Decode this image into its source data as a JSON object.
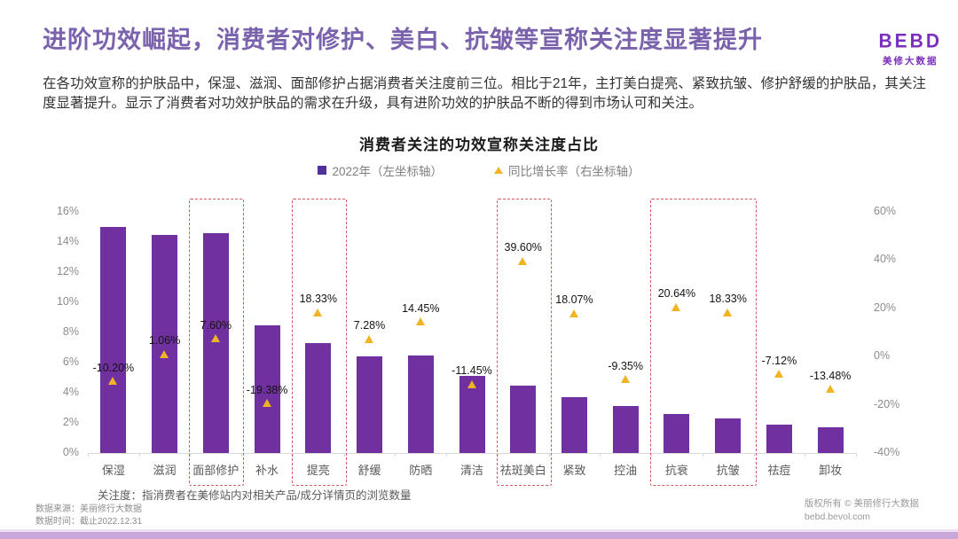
{
  "header": {
    "title": "进阶功效崛起，消费者对修护、美白、抗皱等宣称关注度显著提升",
    "paragraph": "在各功效宣称的护肤品中，保湿、滋润、面部修护占据消费者关注度前三位。相比于21年，主打美白提亮、紧致抗皱、修护舒缓的护肤品，其关注度显著提升。显示了消费者对功效护肤品的需求在升级，具有进阶功效的护肤品不断的得到市场认可和关注。",
    "logo": {
      "brand": "BEBD",
      "sub": "美修大数据"
    }
  },
  "chart_data": {
    "type": "bar",
    "title": "消费者关注的功效宣称关注度占比",
    "categories": [
      "保湿",
      "滋润",
      "面部修护",
      "补水",
      "提亮",
      "舒缓",
      "防晒",
      "清洁",
      "祛斑美白",
      "紧致",
      "控油",
      "抗衰",
      "抗皱",
      "祛痘",
      "卸妆"
    ],
    "series": [
      {
        "name": "2022年（左坐标轴）",
        "type": "bar",
        "axis": "left",
        "unit": "%",
        "values": [
          15.0,
          14.5,
          14.6,
          8.5,
          7.3,
          6.4,
          6.5,
          5.1,
          4.5,
          3.7,
          3.1,
          2.6,
          2.3,
          1.9,
          1.7
        ]
      },
      {
        "name": "同比增长率（右坐标轴）",
        "type": "scatter-triangle",
        "axis": "right",
        "unit": "%",
        "values": [
          -10.2,
          1.06,
          7.6,
          -19.38,
          18.33,
          7.28,
          14.45,
          -11.45,
          39.6,
          18.07,
          -9.35,
          20.64,
          18.33,
          -7.12,
          -13.48
        ],
        "labels": [
          "-10.20%",
          "1.06%",
          "7.60%",
          "-19.38%",
          "18.33%",
          "7.28%",
          "14.45%",
          "-11.45%",
          "39.60%",
          "18.07%",
          "-9.35%",
          "20.64%",
          "18.33%",
          "-7.12%",
          "-13.48%"
        ]
      }
    ],
    "left_axis": {
      "min": 0,
      "max": 16,
      "step": 2,
      "suffix": "%"
    },
    "right_axis": {
      "min": -40,
      "max": 60,
      "step": 20,
      "suffix": "%"
    },
    "grid": false,
    "legend_position": "top-center",
    "highlight_ranges": [
      {
        "start": 2,
        "end": 2
      },
      {
        "start": 4,
        "end": 4
      },
      {
        "start": 8,
        "end": 8
      },
      {
        "start": 11,
        "end": 12
      }
    ],
    "colors": {
      "bar": "#7030a0",
      "marker": "#f0b323",
      "marker_label": "#141414",
      "highlight_box": "#d15a5a",
      "legend_square": "#52309b",
      "title_accent": "#7b62ad",
      "logo": "#7b2fbe",
      "bottom_strip": "#c9a7db"
    }
  },
  "footnote": "关注度：指消费者在美修站内对相关产品/成分详情页的浏览数量",
  "footer": {
    "source": "数据来源：美丽修行大数据",
    "time": "数据时间：截止2022.12.31",
    "copyright": "版权所有 © 美丽修行大数据",
    "website": "bebd.bevol.com"
  }
}
